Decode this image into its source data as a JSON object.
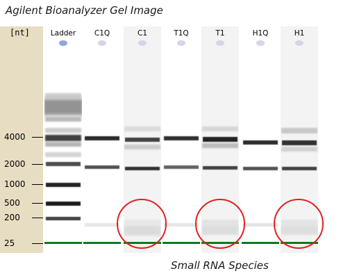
{
  "title": "Agilent Bioanalyzer Gel Image",
  "caption": "Small RNA Species",
  "ruler": {
    "unit": "[nt]",
    "ticks": [
      {
        "label": "4000",
        "nt": 4000
      },
      {
        "label": "2000",
        "nt": 2000
      },
      {
        "label": "1000",
        "nt": 1000
      },
      {
        "label": "500",
        "nt": 500
      },
      {
        "label": "200",
        "nt": 200
      },
      {
        "label": "25",
        "nt": 25
      }
    ]
  },
  "lanes": [
    {
      "label": "Ladder"
    },
    {
      "label": "C1Q"
    },
    {
      "label": "C1"
    },
    {
      "label": "T1Q"
    },
    {
      "label": "T1"
    },
    {
      "label": "H1Q"
    },
    {
      "label": "H1"
    }
  ],
  "colors": {
    "ruler_bg": "#e7ddc2",
    "marker_green": "#0f7a1e",
    "highlight_red": "#e02020",
    "ladder_dot": "#8fa6dc",
    "sample_dot": "#d4d4ec"
  }
}
